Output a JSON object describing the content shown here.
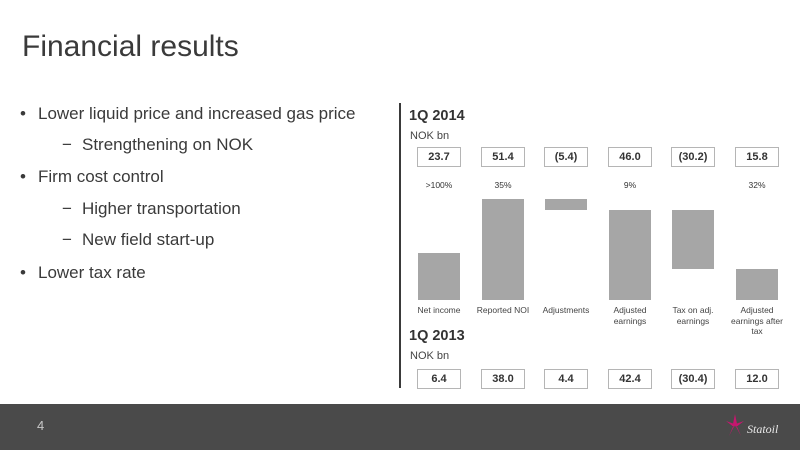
{
  "title": "Financial results",
  "bullets": [
    {
      "text": "Lower liquid price and increased gas price",
      "level": 1
    },
    {
      "text": "Strengthening on NOK",
      "level": 2
    },
    {
      "text": "Firm cost control",
      "level": 1
    },
    {
      "text": "Higher transportation",
      "level": 2
    },
    {
      "text": "New field start-up",
      "level": 2
    },
    {
      "text": "Lower tax rate",
      "level": 1
    }
  ],
  "bullet_marker": "•",
  "sub_marker": "−",
  "chart_data": {
    "type": "bar",
    "title": "1Q 2014",
    "unit": "NOK bn",
    "categories": [
      "Net income",
      "Reported NOI",
      "Adjustments",
      "Adjusted earnings",
      "Tax on adj. earnings",
      "Adjusted earnings after tax"
    ],
    "values_2014": [
      "23.7",
      "51.4",
      "(5.4)",
      "46.0",
      "(30.2)",
      "15.8"
    ],
    "changes": [
      ">100%",
      "35%",
      "",
      "9%",
      "",
      "32%"
    ],
    "bars": [
      {
        "from": 0,
        "to": 23.7
      },
      {
        "from": 0,
        "to": 51.4
      },
      {
        "from": 46.0,
        "to": 51.4
      },
      {
        "from": 0,
        "to": 46.0
      },
      {
        "from": 15.8,
        "to": 46.0
      },
      {
        "from": 0,
        "to": 15.8
      }
    ],
    "ylim": [
      0,
      51.4
    ],
    "comparison_title": "1Q 2013",
    "comparison_unit": "NOK bn",
    "values_2013": [
      "6.4",
      "38.0",
      "4.4",
      "42.4",
      "(30.4)",
      "12.0"
    ],
    "bar_color": "#a6a6a6"
  },
  "footer": {
    "page_number": "4",
    "logo_text": "Statoil"
  }
}
